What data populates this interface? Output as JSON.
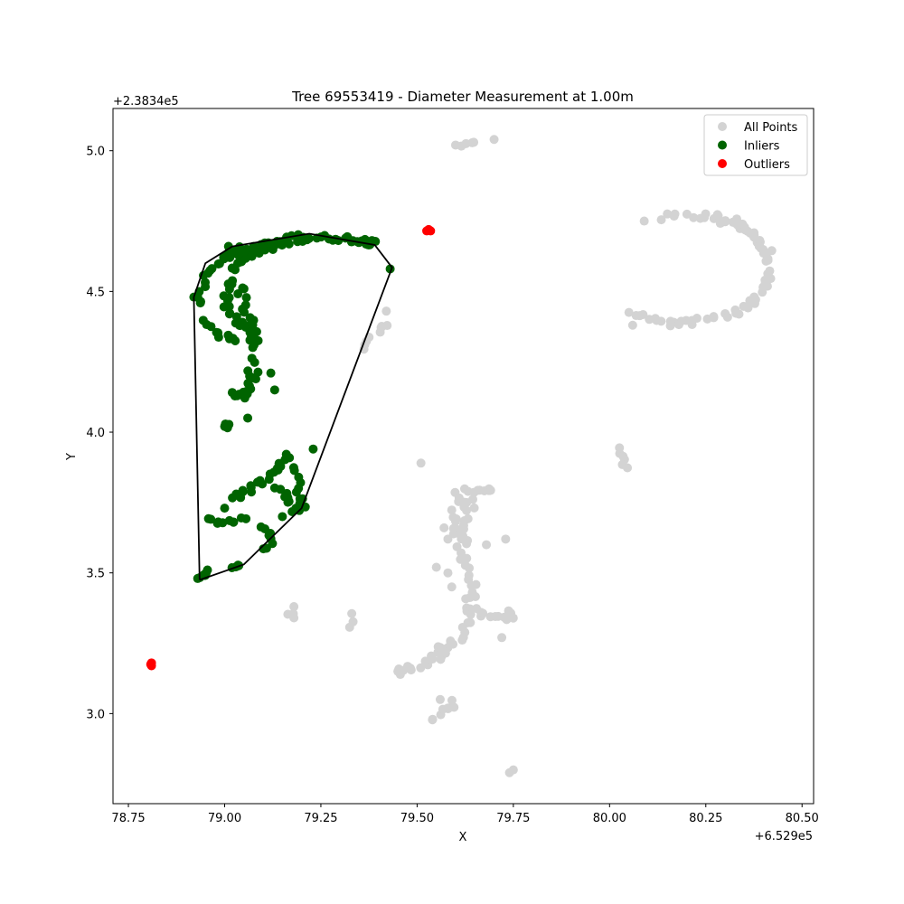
{
  "chart_data": {
    "type": "scatter",
    "title": "Tree 69553419 - Diameter Measurement at 1.00m",
    "xlabel": "X",
    "ylabel": "Y",
    "x_offset_label": "+6.529e5",
    "y_offset_label": "+2.3834e5",
    "xlim": [
      78.71,
      80.53
    ],
    "ylim": [
      2.68,
      5.15
    ],
    "x_ticks": [
      78.75,
      79.0,
      79.25,
      79.5,
      79.75,
      80.0,
      80.25,
      80.5
    ],
    "x_tick_labels": [
      "78.75",
      "79.00",
      "79.25",
      "79.50",
      "79.75",
      "80.00",
      "80.25",
      "80.50"
    ],
    "y_ticks": [
      3.0,
      3.5,
      4.0,
      4.5,
      5.0
    ],
    "y_tick_labels": [
      "3.0",
      "3.5",
      "4.0",
      "4.5",
      "5.0"
    ],
    "grid": false,
    "legend_position": "top-right",
    "series": [
      {
        "name": "All Points",
        "color": "#d3d3d3",
        "clusters": [
          {
            "path": [
              [
                80.13,
                4.76
              ],
              [
                80.25,
                4.77
              ],
              [
                80.34,
                4.74
              ],
              [
                80.39,
                4.67
              ],
              [
                80.42,
                4.58
              ],
              [
                80.39,
                4.48
              ],
              [
                80.33,
                4.42
              ],
              [
                80.23,
                4.39
              ],
              [
                80.15,
                4.38
              ]
            ],
            "n": 60,
            "spread": 0.014
          },
          {
            "path": [
              [
                80.28,
                4.76
              ],
              [
                80.36,
                4.72
              ],
              [
                80.41,
                4.64
              ]
            ],
            "n": 14,
            "spread": 0.012
          },
          {
            "path": [
              [
                80.05,
                4.42
              ],
              [
                80.1,
                4.41
              ],
              [
                80.14,
                4.4
              ]
            ],
            "n": 8,
            "spread": 0.008
          },
          {
            "path": [
              [
                79.64,
                3.78
              ],
              [
                79.63,
                3.68
              ],
              [
                79.62,
                3.57
              ],
              [
                79.64,
                3.45
              ],
              [
                79.64,
                3.37
              ],
              [
                79.62,
                3.28
              ],
              [
                79.57,
                3.21
              ],
              [
                79.5,
                3.17
              ],
              [
                79.46,
                3.15
              ]
            ],
            "n": 56,
            "spread": 0.015
          },
          {
            "path": [
              [
                79.59,
                3.72
              ],
              [
                79.6,
                3.66
              ],
              [
                79.61,
                3.6
              ]
            ],
            "n": 10,
            "spread": 0.012
          },
          {
            "path": [
              [
                79.62,
                3.79
              ],
              [
                79.67,
                3.79
              ],
              [
                79.7,
                3.8
              ]
            ],
            "n": 8,
            "spread": 0.01
          },
          {
            "path": [
              [
                79.66,
                3.36
              ],
              [
                79.69,
                3.34
              ],
              [
                79.73,
                3.34
              ]
            ],
            "n": 8,
            "spread": 0.008
          },
          {
            "path": [
              [
                79.55,
                3.24
              ],
              [
                79.58,
                3.22
              ]
            ],
            "n": 5,
            "spread": 0.008
          },
          {
            "path": [
              [
                79.53,
                2.98
              ],
              [
                79.57,
                3.01
              ],
              [
                79.6,
                3.04
              ]
            ],
            "n": 8,
            "spread": 0.01
          },
          {
            "path": [
              [
                79.6,
                3.78
              ],
              [
                79.62,
                3.75
              ]
            ],
            "n": 4,
            "spread": 0.008
          },
          {
            "path": [
              [
                79.36,
                4.3
              ],
              [
                79.38,
                4.34
              ]
            ],
            "n": 4,
            "spread": 0.006
          },
          {
            "path": [
              [
                79.4,
                4.36
              ],
              [
                79.42,
                4.38
              ]
            ],
            "n": 4,
            "spread": 0.006
          },
          {
            "path": [
              [
                79.62,
                5.02
              ],
              [
                79.65,
                5.03
              ]
            ],
            "n": 4,
            "spread": 0.005
          },
          {
            "path": [
              [
                80.03,
                3.94
              ],
              [
                80.04,
                3.91
              ],
              [
                80.04,
                3.88
              ]
            ],
            "n": 6,
            "spread": 0.008
          },
          {
            "path": [
              [
                79.33,
                3.35
              ],
              [
                79.33,
                3.31
              ]
            ],
            "n": 3,
            "spread": 0.006
          },
          {
            "path": [
              [
                79.16,
                3.35
              ],
              [
                79.18,
                3.35
              ]
            ],
            "n": 2,
            "spread": 0.005
          },
          {
            "path": [
              [
                79.74,
                3.37
              ],
              [
                79.75,
                3.34
              ]
            ],
            "n": 3,
            "spread": 0.006
          }
        ],
        "points": [
          [
            80.09,
            4.75
          ],
          [
            80.06,
            4.38
          ],
          [
            79.7,
            5.04
          ],
          [
            79.6,
            5.02
          ],
          [
            79.42,
            4.43
          ],
          [
            79.18,
            3.38
          ],
          [
            79.18,
            3.34
          ],
          [
            79.45,
            3.15
          ],
          [
            79.73,
            3.62
          ],
          [
            79.68,
            3.6
          ],
          [
            79.72,
            3.27
          ],
          [
            79.75,
            2.8
          ],
          [
            79.74,
            2.79
          ],
          [
            79.56,
            3.05
          ],
          [
            79.58,
            3.62
          ],
          [
            79.57,
            3.66
          ],
          [
            79.51,
            3.89
          ],
          [
            79.58,
            3.5
          ],
          [
            79.55,
            3.52
          ],
          [
            79.59,
            3.45
          ]
        ]
      },
      {
        "name": "Inliers",
        "color": "#006400",
        "clusters": [
          {
            "path": [
              [
                79.02,
                4.58
              ],
              [
                79.07,
                4.63
              ],
              [
                79.14,
                4.67
              ],
              [
                79.22,
                4.69
              ],
              [
                79.3,
                4.69
              ],
              [
                79.36,
                4.68
              ],
              [
                79.39,
                4.67
              ]
            ],
            "n": 48,
            "spread": 0.01
          },
          {
            "path": [
              [
                79.0,
                4.61
              ],
              [
                79.05,
                4.65
              ],
              [
                79.12,
                4.67
              ],
              [
                79.2,
                4.7
              ]
            ],
            "n": 22,
            "spread": 0.008
          },
          {
            "path": [
              [
                78.93,
                4.45
              ],
              [
                78.95,
                4.56
              ],
              [
                79.0,
                4.62
              ],
              [
                79.03,
                4.65
              ]
            ],
            "n": 20,
            "spread": 0.009
          },
          {
            "path": [
              [
                79.01,
                4.55
              ],
              [
                79.0,
                4.48
              ],
              [
                79.01,
                4.42
              ],
              [
                79.04,
                4.38
              ],
              [
                79.07,
                4.36
              ],
              [
                79.08,
                4.3
              ]
            ],
            "n": 24,
            "spread": 0.012
          },
          {
            "path": [
              [
                79.04,
                4.52
              ],
              [
                79.05,
                4.44
              ],
              [
                79.07,
                4.38
              ],
              [
                79.08,
                4.33
              ]
            ],
            "n": 16,
            "spread": 0.012
          },
          {
            "path": [
              [
                78.94,
                4.4
              ],
              [
                78.97,
                4.36
              ],
              [
                79.0,
                4.34
              ],
              [
                79.02,
                4.32
              ]
            ],
            "n": 10,
            "spread": 0.01
          },
          {
            "path": [
              [
                79.07,
                4.25
              ],
              [
                79.08,
                4.2
              ],
              [
                79.07,
                4.16
              ],
              [
                79.05,
                4.13
              ],
              [
                79.02,
                4.14
              ]
            ],
            "n": 20,
            "spread": 0.016
          },
          {
            "path": [
              [
                79.0,
                4.02
              ],
              [
                79.02,
                4.02
              ]
            ],
            "n": 6,
            "spread": 0.01
          },
          {
            "path": [
              [
                79.03,
                3.77
              ],
              [
                79.08,
                3.81
              ],
              [
                79.13,
                3.86
              ],
              [
                79.17,
                3.93
              ]
            ],
            "n": 20,
            "spread": 0.01
          },
          {
            "path": [
              [
                79.14,
                3.8
              ],
              [
                79.17,
                3.76
              ],
              [
                79.19,
                3.72
              ]
            ],
            "n": 10,
            "spread": 0.012
          },
          {
            "path": [
              [
                79.18,
                3.88
              ],
              [
                79.19,
                3.81
              ],
              [
                79.2,
                3.75
              ],
              [
                79.2,
                3.72
              ]
            ],
            "n": 12,
            "spread": 0.01
          },
          {
            "path": [
              [
                78.96,
                3.69
              ],
              [
                79.0,
                3.68
              ],
              [
                79.05,
                3.69
              ]
            ],
            "n": 10,
            "spread": 0.008
          },
          {
            "path": [
              [
                79.1,
                3.66
              ],
              [
                79.12,
                3.63
              ],
              [
                79.11,
                3.58
              ]
            ],
            "n": 8,
            "spread": 0.01
          },
          {
            "path": [
              [
                78.94,
                3.48
              ],
              [
                78.96,
                3.51
              ]
            ],
            "n": 6,
            "spread": 0.006
          },
          {
            "path": [
              [
                79.02,
                3.52
              ],
              [
                79.04,
                3.53
              ]
            ],
            "n": 4,
            "spread": 0.005
          }
        ],
        "points": [
          [
            79.43,
            4.58
          ],
          [
            78.92,
            4.48
          ],
          [
            79.01,
            4.66
          ],
          [
            78.93,
            3.48
          ],
          [
            79.23,
            3.94
          ],
          [
            79.0,
            3.73
          ],
          [
            79.13,
            4.15
          ],
          [
            79.12,
            4.21
          ],
          [
            79.06,
            4.05
          ],
          [
            79.15,
            3.7
          ],
          [
            79.03,
            3.78
          ]
        ]
      },
      {
        "name": "Outliers",
        "color": "#ff0000",
        "clusters": [],
        "points": [
          [
            79.53,
            4.72
          ],
          [
            79.535,
            4.715
          ],
          [
            79.525,
            4.715
          ],
          [
            78.81,
            3.18
          ],
          [
            78.81,
            3.17
          ],
          [
            78.808,
            3.175
          ]
        ]
      }
    ],
    "hull": {
      "color": "#000000",
      "points": [
        [
          78.935,
          3.475
        ],
        [
          78.92,
          4.48
        ],
        [
          78.95,
          4.6
        ],
        [
          79.02,
          4.66
        ],
        [
          79.22,
          4.705
        ],
        [
          79.39,
          4.665
        ],
        [
          79.435,
          4.585
        ],
        [
          79.2,
          3.73
        ],
        [
          79.05,
          3.53
        ],
        [
          78.935,
          3.475
        ]
      ]
    }
  }
}
